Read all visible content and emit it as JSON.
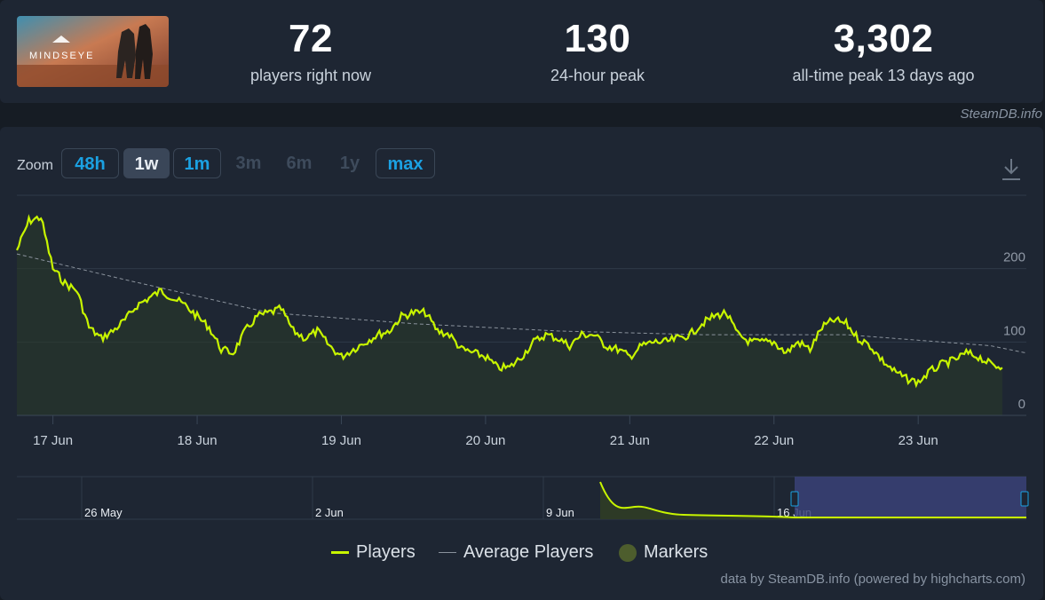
{
  "game": {
    "title": "MINDSEYE"
  },
  "stats": [
    {
      "value": "72",
      "label": "players right now"
    },
    {
      "value": "130",
      "label": "24-hour peak"
    },
    {
      "value": "3,302",
      "label": "all-time peak 13 days ago"
    }
  ],
  "credit_top": "SteamDB.info",
  "zoom": {
    "label": "Zoom",
    "buttons": [
      {
        "label": "48h",
        "state": "active"
      },
      {
        "label": "1w",
        "state": "selected"
      },
      {
        "label": "1m",
        "state": "active"
      },
      {
        "label": "3m",
        "state": "disabled"
      },
      {
        "label": "6m",
        "state": "disabled"
      },
      {
        "label": "1y",
        "state": "disabled"
      },
      {
        "label": "max",
        "state": "active"
      }
    ]
  },
  "icons": {
    "download": "download-icon"
  },
  "colors": {
    "players_line": "#c8f500",
    "average_line": "#8a929c",
    "markers": "#4d5d2d",
    "navigator_selection": "#3a4278",
    "accent_blue": "#1ba1e2"
  },
  "chart_data": {
    "type": "line",
    "x_axis": {
      "type": "datetime",
      "tick_labels": [
        "17 Jun",
        "18 Jun",
        "19 Jun",
        "20 Jun",
        "21 Jun",
        "22 Jun",
        "23 Jun"
      ]
    },
    "y_axis": {
      "min": 0,
      "max": 300,
      "tick_labels": [
        "0",
        "100",
        "200"
      ],
      "grid": true
    },
    "series": [
      {
        "name": "Players",
        "x": [
          "2025-06-16 18:00",
          "2025-06-16 20:00",
          "2025-06-16 22:00",
          "2025-06-17 00:00",
          "2025-06-17 02:00",
          "2025-06-17 04:00",
          "2025-06-17 06:00",
          "2025-06-17 08:00",
          "2025-06-17 10:00",
          "2025-06-17 12:00",
          "2025-06-17 14:00",
          "2025-06-17 16:00",
          "2025-06-17 18:00",
          "2025-06-17 20:00",
          "2025-06-17 22:00",
          "2025-06-18 00:00",
          "2025-06-18 02:00",
          "2025-06-18 04:00",
          "2025-06-18 06:00",
          "2025-06-18 08:00",
          "2025-06-18 10:00",
          "2025-06-18 12:00",
          "2025-06-18 14:00",
          "2025-06-18 16:00",
          "2025-06-18 18:00",
          "2025-06-18 20:00",
          "2025-06-18 22:00",
          "2025-06-19 00:00",
          "2025-06-19 02:00",
          "2025-06-19 04:00",
          "2025-06-19 06:00",
          "2025-06-19 08:00",
          "2025-06-19 10:00",
          "2025-06-19 12:00",
          "2025-06-19 14:00",
          "2025-06-19 16:00",
          "2025-06-19 18:00",
          "2025-06-19 20:00",
          "2025-06-19 22:00",
          "2025-06-20 00:00",
          "2025-06-20 02:00",
          "2025-06-20 04:00",
          "2025-06-20 06:00",
          "2025-06-20 08:00",
          "2025-06-20 10:00",
          "2025-06-20 12:00",
          "2025-06-20 14:00",
          "2025-06-20 16:00",
          "2025-06-20 18:00",
          "2025-06-20 20:00",
          "2025-06-20 22:00",
          "2025-06-21 00:00",
          "2025-06-21 02:00",
          "2025-06-21 04:00",
          "2025-06-21 06:00",
          "2025-06-21 08:00",
          "2025-06-21 10:00",
          "2025-06-21 12:00",
          "2025-06-21 14:00",
          "2025-06-21 16:00",
          "2025-06-21 18:00",
          "2025-06-21 20:00",
          "2025-06-21 22:00",
          "2025-06-22 00:00",
          "2025-06-22 02:00",
          "2025-06-22 04:00",
          "2025-06-22 06:00",
          "2025-06-22 08:00",
          "2025-06-22 10:00",
          "2025-06-22 12:00",
          "2025-06-22 14:00",
          "2025-06-22 16:00",
          "2025-06-22 18:00",
          "2025-06-22 20:00",
          "2025-06-22 22:00",
          "2025-06-23 00:00",
          "2025-06-23 02:00",
          "2025-06-23 04:00",
          "2025-06-23 06:00",
          "2025-06-23 08:00",
          "2025-06-23 10:00",
          "2025-06-23 12:00",
          "2025-06-23 14:00"
        ],
        "y": [
          225,
          265,
          270,
          200,
          180,
          170,
          120,
          105,
          115,
          130,
          150,
          160,
          170,
          160,
          150,
          135,
          120,
          90,
          85,
          115,
          135,
          140,
          145,
          115,
          105,
          115,
          95,
          80,
          90,
          100,
          110,
          115,
          135,
          140,
          140,
          115,
          110,
          90,
          85,
          80,
          65,
          65,
          80,
          100,
          110,
          105,
          95,
          110,
          110,
          95,
          90,
          80,
          95,
          100,
          100,
          105,
          110,
          125,
          135,
          140,
          110,
          100,
          100,
          100,
          85,
          100,
          90,
          120,
          130,
          125,
          105,
          95,
          75,
          60,
          50,
          45,
          60,
          70,
          75,
          85,
          80,
          70,
          65
        ]
      },
      {
        "name": "Average Players",
        "x": [
          "2025-06-16 18:00",
          "2025-06-17 12:00",
          "2025-06-18 12:00",
          "2025-06-19 12:00",
          "2025-06-20 12:00",
          "2025-06-21 12:00",
          "2025-06-22 12:00",
          "2025-06-23 12:00",
          "2025-06-23 18:00"
        ],
        "y": [
          220,
          185,
          140,
          125,
          115,
          110,
          110,
          95,
          85
        ]
      }
    ],
    "navigator": {
      "tick_labels": [
        "26 May",
        "2 Jun",
        "9 Jun",
        "16 Jun"
      ]
    },
    "legend": [
      "Players",
      "Average Players",
      "Markers"
    ]
  },
  "credit_bottom": "data by SteamDB.info (powered by highcharts.com)"
}
